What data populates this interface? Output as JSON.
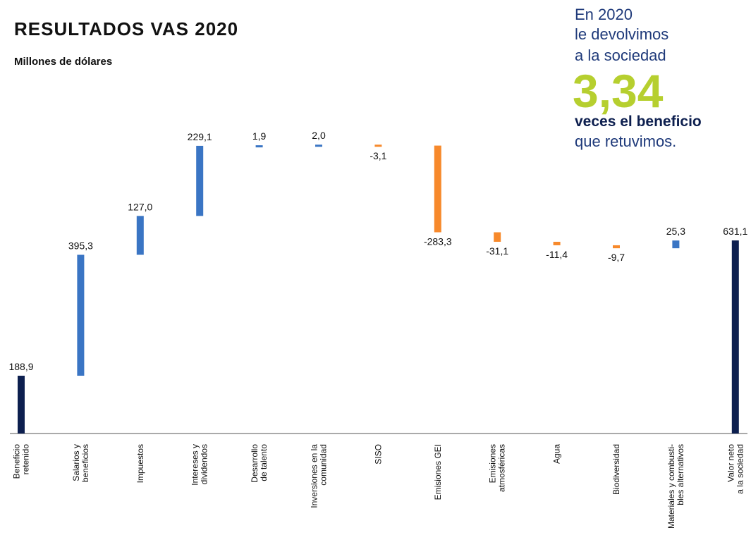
{
  "chart_data": {
    "type": "waterfall",
    "title": "RESULTADOS VAS 2020",
    "subtitle": "Millones de dólares",
    "categories": [
      [
        "Beneficio",
        "retenido"
      ],
      [
        "Salarios y",
        "beneficios"
      ],
      [
        "Impuestos"
      ],
      [
        "Intereses y",
        "dividendos"
      ],
      [
        "Desarrollo",
        "de talento"
      ],
      [
        "Inversiones en la",
        "comunidad"
      ],
      [
        "SISO"
      ],
      [
        "Emisiones GEI"
      ],
      [
        "Emisiones",
        "atmosféricas"
      ],
      [
        "Agua"
      ],
      [
        "Biodiversidad"
      ],
      [
        "Materiales y combusti-",
        "bles alternativos"
      ],
      [
        "Valor neto",
        "a la sociedad"
      ]
    ],
    "values": [
      188.9,
      395.3,
      127.0,
      229.1,
      1.9,
      2.0,
      -3.1,
      -283.3,
      -31.1,
      -11.4,
      -9.7,
      25.3,
      631.1
    ],
    "value_labels": [
      "188,9",
      "395,3",
      "127,0",
      "229,1",
      "1,9",
      "2,0",
      "-3,1",
      "-283,3",
      "-31,1",
      "-11,4",
      "-9,7",
      "25,3",
      "631,1"
    ],
    "total_color": "#0d1f4f",
    "increase_color": "#3a75c4",
    "decrease_color": "#f7892b",
    "ylim": [
      0,
      1000
    ],
    "callout": {
      "lines": [
        "En 2020",
        "le devolvimos",
        "a la sociedad"
      ],
      "highlight": "3,34",
      "emphasis": "veces el beneficio",
      "closing": "que retuvimos."
    }
  }
}
